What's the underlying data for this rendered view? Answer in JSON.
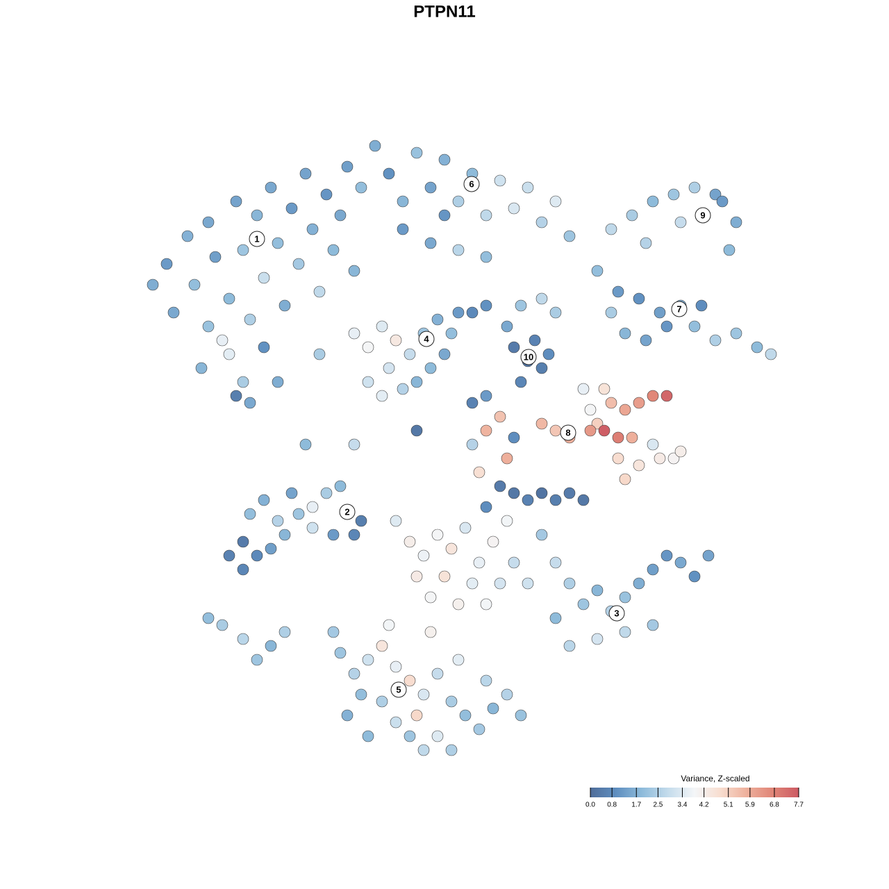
{
  "chart_data": {
    "type": "scatter",
    "title": "PTPN11",
    "xlim": [
      15,
      115
    ],
    "ylim": [
      0,
      100
    ],
    "x": [
      22,
      24,
      25,
      27,
      28,
      30,
      31,
      33,
      34,
      35,
      36,
      37,
      38,
      39,
      40,
      41,
      42,
      43,
      44,
      45,
      46,
      47,
      48,
      49,
      50,
      51,
      52,
      33,
      35,
      32,
      36,
      30,
      29,
      38,
      40,
      34,
      54,
      56,
      58,
      60,
      62,
      64,
      66,
      68,
      70,
      72,
      74,
      76,
      78,
      80,
      82,
      58,
      62,
      66,
      70,
      64,
      88,
      91,
      94,
      97,
      100,
      103,
      106,
      105,
      104,
      98,
      93,
      86,
      89,
      92,
      95,
      98,
      100,
      103,
      106,
      109,
      111,
      90,
      93,
      96,
      101,
      88,
      51,
      53,
      55,
      56,
      57,
      59,
      61,
      62,
      63,
      64,
      65,
      53,
      55,
      58,
      60,
      66,
      68,
      70,
      74,
      76,
      77,
      78,
      75,
      79,
      73,
      75,
      78,
      80,
      84,
      85,
      87,
      86,
      88,
      90,
      92,
      94,
      96,
      87,
      89,
      91,
      89,
      92,
      95,
      97,
      98,
      90,
      94,
      78,
      80,
      82,
      85,
      70,
      72,
      74,
      73,
      68,
      69,
      33,
      35,
      37,
      39,
      41,
      43,
      45,
      47,
      49,
      36,
      38,
      40,
      42,
      45,
      51,
      52,
      48,
      35,
      30,
      32,
      35,
      37,
      39,
      41,
      57,
      59,
      61,
      63,
      65,
      67,
      69,
      71,
      73,
      60,
      62,
      64,
      66,
      68,
      70,
      72,
      74,
      76,
      72,
      74,
      76,
      78,
      80,
      82,
      84,
      70,
      78,
      80,
      82,
      84,
      86,
      88,
      90,
      92,
      94,
      96,
      98,
      100,
      102,
      90,
      86,
      82,
      94,
      80,
      49,
      51,
      53,
      55,
      57,
      59,
      61,
      63,
      65,
      67,
      69,
      71,
      73,
      75,
      55,
      57,
      59,
      61,
      63,
      65,
      53,
      50,
      52,
      60,
      48,
      56,
      62,
      66,
      70,
      44,
      60,
      68,
      70,
      46,
      51
    ],
    "y": [
      74,
      77,
      70,
      81,
      74,
      83,
      78,
      72,
      86,
      79,
      69,
      84,
      75,
      88,
      80,
      71,
      85,
      77,
      90,
      82,
      73,
      87,
      79,
      84,
      91,
      76,
      88,
      64,
      60,
      66,
      57,
      68,
      62,
      65,
      60,
      58,
      94,
      90,
      86,
      93,
      88,
      92,
      86,
      90,
      84,
      89,
      85,
      88,
      83,
      86,
      81,
      82,
      80,
      79,
      78,
      84,
      82,
      84,
      86,
      87,
      88,
      87,
      83,
      79,
      86,
      83,
      80,
      76,
      73,
      72,
      70,
      71,
      68,
      66,
      67,
      65,
      64,
      67,
      66,
      68,
      71,
      70,
      67,
      65,
      68,
      62,
      66,
      64,
      67,
      62,
      69,
      64,
      67,
      60,
      58,
      59,
      60,
      70,
      70,
      71,
      65,
      63,
      66,
      62,
      60,
      64,
      68,
      71,
      72,
      70,
      59,
      56,
      59,
      54,
      57,
      56,
      57,
      58,
      58,
      53,
      52,
      52,
      49,
      48,
      49,
      49,
      50,
      46,
      51,
      54,
      53,
      52,
      53,
      53,
      55,
      52,
      49,
      51,
      47,
      35,
      37,
      35,
      36,
      38,
      41,
      42,
      44,
      45,
      41,
      43,
      40,
      44,
      39,
      38,
      40,
      38,
      33,
      26,
      25,
      23,
      20,
      22,
      24,
      40,
      37,
      35,
      38,
      36,
      39,
      34,
      37,
      40,
      32,
      29,
      32,
      28,
      31,
      28,
      31,
      34,
      31,
      45,
      44,
      43,
      44,
      43,
      44,
      43,
      42,
      38,
      34,
      31,
      28,
      30,
      27,
      29,
      31,
      33,
      35,
      34,
      32,
      35,
      24,
      23,
      22,
      25,
      26,
      21,
      18,
      20,
      22,
      19,
      17,
      15,
      18,
      14,
      12,
      10,
      13,
      15,
      12,
      14,
      11,
      9,
      7,
      9,
      7,
      9,
      12,
      15,
      12,
      24,
      25,
      24,
      20,
      17,
      51,
      53,
      57,
      58,
      64,
      51
    ],
    "values": [
      1.6,
      1.2,
      1.5,
      1.7,
      2.0,
      1.5,
      1.3,
      1.9,
      1.4,
      2.2,
      2.5,
      1.8,
      3.0,
      1.5,
      2.0,
      1.6,
      1.2,
      2.3,
      1.4,
      1.7,
      2.8,
      1.1,
      1.9,
      1.5,
      1.3,
      1.8,
      2.0,
      3.5,
      2.4,
      3.6,
      1.5,
      2.1,
      1.8,
      1.0,
      1.6,
      0.5,
      1.6,
      1.0,
      1.8,
      2.1,
      1.4,
      1.7,
      2.5,
      1.9,
      2.8,
      3.1,
      3.3,
      3.0,
      2.6,
      3.4,
      2.2,
      1.2,
      1.5,
      2.7,
      2.0,
      1.1,
      2.8,
      2.4,
      1.9,
      2.2,
      2.5,
      1.4,
      1.6,
      1.9,
      1.2,
      2.9,
      2.6,
      2.0,
      1.2,
      1.0,
      1.3,
      1.6,
      2.0,
      2.5,
      2.2,
      1.9,
      2.8,
      1.8,
      1.4,
      1.1,
      0.9,
      2.4,
      3.6,
      3.9,
      3.4,
      3.2,
      4.4,
      2.9,
      2.2,
      1.9,
      1.7,
      1.5,
      2.0,
      3.1,
      3.5,
      2.6,
      1.8,
      1.2,
      0.8,
      1.0,
      0.4,
      0.3,
      0.6,
      0.5,
      0.7,
      0.9,
      1.5,
      2.2,
      2.8,
      2.4,
      3.6,
      3.9,
      4.6,
      5.1,
      5.5,
      6.0,
      6.2,
      6.7,
      7.4,
      7.6,
      6.9,
      5.8,
      4.8,
      4.5,
      4.3,
      4.0,
      4.2,
      4.9,
      3.3,
      5.6,
      5.3,
      5.8,
      6.3,
      5.7,
      5.4,
      0.9,
      5.8,
      2.6,
      4.7,
      0.6,
      0.4,
      0.8,
      1.3,
      1.8,
      2.2,
      3.6,
      2.4,
      1.9,
      2.0,
      1.7,
      2.6,
      1.4,
      3.1,
      0.7,
      0.5,
      1.2,
      0.7,
      2.0,
      2.4,
      2.7,
      2.2,
      1.8,
      2.5,
      3.4,
      4.2,
      3.7,
      3.9,
      4.5,
      3.3,
      3.6,
      4.0,
      3.8,
      4.3,
      3.9,
      4.6,
      4.1,
      3.5,
      3.8,
      3.2,
      2.9,
      3.1,
      0.4,
      0.3,
      0.6,
      0.2,
      0.5,
      0.4,
      0.3,
      0.9,
      2.3,
      2.9,
      2.5,
      2.2,
      1.8,
      2.6,
      2.1,
      1.6,
      1.3,
      1.1,
      1.5,
      1.0,
      1.4,
      2.8,
      3.2,
      2.7,
      2.3,
      1.9,
      2.2,
      2.6,
      3.1,
      4.5,
      3.6,
      4.8,
      3.3,
      2.9,
      2.4,
      2.0,
      2.3,
      1.8,
      2.6,
      2.1,
      2.5,
      3.0,
      2.2,
      2.8,
      3.4,
      2.5,
      1.9,
      1.7,
      2.0,
      4.9,
      2.3,
      3.8,
      4.1,
      3.5,
      2.7,
      1.9,
      0.3,
      0.6,
      1.2,
      2.4,
      2.9
    ],
    "clusters": {
      "labels": [
        "1",
        "2",
        "3",
        "4",
        "5",
        "6",
        "7",
        "8",
        "9",
        "10"
      ],
      "x": [
        37.0,
        50.0,
        88.8,
        61.4,
        57.4,
        67.9,
        97.8,
        81.8,
        101.2,
        76.1
      ],
      "y": [
        80.6,
        41.3,
        26.7,
        66.2,
        15.7,
        88.5,
        70.5,
        52.7,
        84.0,
        63.6
      ]
    },
    "colorbar": {
      "title": "Variance, Z-scaled",
      "lim": [
        0,
        7.7
      ],
      "ticks": [
        {
          "value": 0,
          "label": "0.0"
        },
        0.8,
        1.7,
        2.5,
        3.4,
        4.2,
        5.1,
        5.9,
        6.8,
        7.7
      ],
      "colors": [
        "#4f6d9a",
        "#5f8fc0",
        "#8fbcdb",
        "#c5dcec",
        "#f4f6f8",
        "#f8ddcf",
        "#eeb09c",
        "#e08577",
        "#cc5a63"
      ]
    }
  }
}
